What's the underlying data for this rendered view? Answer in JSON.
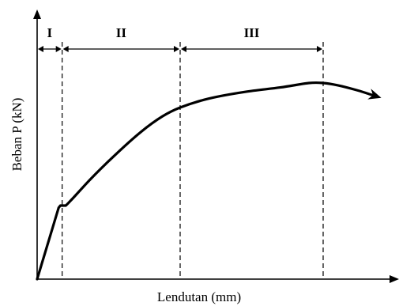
{
  "chart_data": {
    "type": "line",
    "title": "",
    "xlabel": "Lendutan (mm)",
    "ylabel": "Beban  P (kN)",
    "xlim": [
      0,
      100
    ],
    "ylim": [
      0,
      100
    ],
    "grid": false,
    "legend": "none",
    "series": [
      {
        "x": [
          0,
          6,
          6.5,
          8,
          15,
          22,
          29,
          35,
          40,
          48,
          58,
          68,
          76,
          80,
          84,
          89,
          93,
          95
        ],
        "y": [
          0,
          32,
          33,
          33,
          45,
          56,
          66,
          73,
          77,
          81,
          84,
          86,
          88,
          88,
          87,
          85,
          83,
          82
        ]
      }
    ],
    "region_labels": [
      "I",
      "II",
      "III"
    ],
    "region_boundaries_x": [
      0,
      7,
      40,
      80
    ]
  }
}
